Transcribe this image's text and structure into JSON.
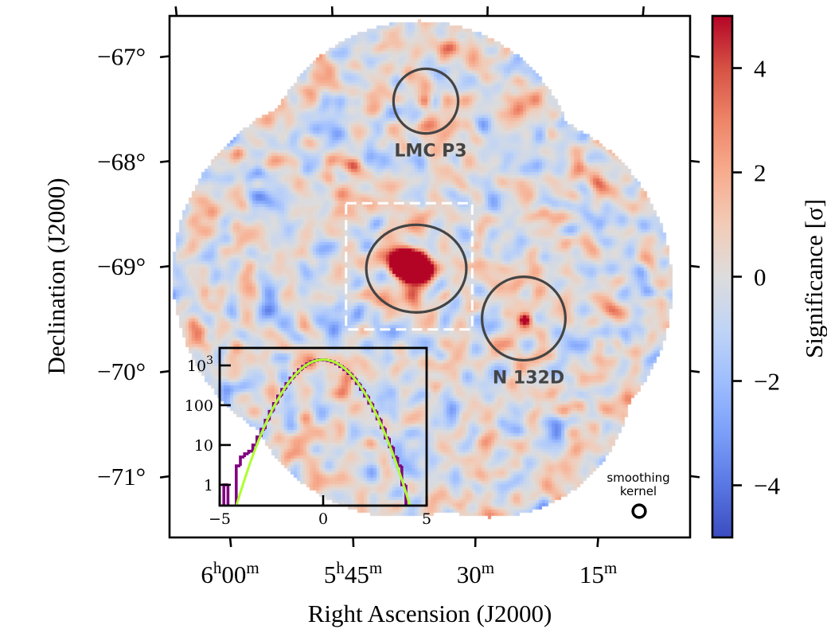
{
  "figure": {
    "background": "#ffffff",
    "colormap": {
      "name": "coolwarm",
      "stops": [
        "#3b4cc0",
        "#5977e3",
        "#7b9ff9",
        "#9ebeff",
        "#c0d4f5",
        "#dddcdc",
        "#f2cbb7",
        "#f7ac8e",
        "#ee8468",
        "#d65244",
        "#b40426"
      ]
    }
  },
  "chart_data": [
    {
      "id": "significance-map",
      "type": "heatmap",
      "title": "",
      "xlabel": "Right Ascension (J2000)",
      "ylabel": "Declination (J2000)",
      "xaxis": {
        "unit": "RA minutes of time",
        "range": [
          "6h07m",
          "5h04m"
        ],
        "ticks": [
          {
            "ra_min": 360,
            "label": [
              {
                "t": "6"
              },
              {
                "t": "h",
                "sup": true
              },
              {
                "t": "00"
              },
              {
                "t": "m",
                "sup": true
              }
            ]
          },
          {
            "ra_min": 345,
            "label": [
              {
                "t": "5"
              },
              {
                "t": "h",
                "sup": true
              },
              {
                "t": "45"
              },
              {
                "t": "m",
                "sup": true
              }
            ]
          },
          {
            "ra_min": 330,
            "label": [
              {
                "t": "30"
              },
              {
                "t": "m",
                "sup": true
              }
            ]
          },
          {
            "ra_min": 315,
            "label": [
              {
                "t": "15"
              },
              {
                "t": "m",
                "sup": true
              }
            ]
          }
        ]
      },
      "yaxis": {
        "unit": "deg",
        "range": [
          -71.6,
          -66.6
        ],
        "ticks": [
          {
            "dec": -67,
            "label": "−67°"
          },
          {
            "dec": -68,
            "label": "−68°"
          },
          {
            "dec": -69,
            "label": "−69°"
          },
          {
            "dec": -70,
            "label": "−70°"
          },
          {
            "dec": -71,
            "label": "−71°"
          }
        ]
      },
      "colorbar": {
        "label": "Significance [σ]",
        "vmin": -5,
        "vmax": 5,
        "ticks": [
          {
            "value": 4,
            "label": "4"
          },
          {
            "value": 2,
            "label": "2"
          },
          {
            "value": 0,
            "label": "0"
          },
          {
            "value": -2,
            "label": "−2"
          },
          {
            "value": -4,
            "label": "−4"
          }
        ]
      },
      "sources": [
        {
          "ra_min": 337.64,
          "dec": -69.144,
          "peak_sigma": 30,
          "sigma_major_deg": 0.11,
          "sigma_minor_deg": 0.077,
          "pa_deg": 20
        },
        {
          "ra_min": 337.64,
          "dec": -69.144,
          "peak_sigma": 1.3,
          "sigma_major_deg": 0.25,
          "sigma_minor_deg": 0.25,
          "pa_deg": 0
        },
        {
          "ra_min": 325.06,
          "dec": -69.644,
          "peak_sigma": 5.5,
          "sigma_major_deg": 0.045,
          "sigma_minor_deg": 0.045,
          "pa_deg": 0
        },
        {
          "ra_min": 325.06,
          "dec": -69.644,
          "peak_sigma": 1.2,
          "sigma_major_deg": 0.18,
          "sigma_minor_deg": 0.18,
          "pa_deg": 0
        },
        {
          "ra_min": 335.98,
          "dec": -67.565,
          "peak_sigma": 2.6,
          "sigma_major_deg": 0.045,
          "sigma_minor_deg": 0.045,
          "pa_deg": 0
        }
      ],
      "regions": [
        {
          "id": "lmc-p3",
          "shape": "circle",
          "ra_min": 335.98,
          "dec": -67.565,
          "radius_deg": 0.31,
          "label": "LMC P3",
          "color": "#444444"
        },
        {
          "id": "central-region",
          "shape": "ellipse",
          "ra_min": 337.04,
          "dec": -69.17,
          "rx_deg": 0.48,
          "ry_deg": 0.42,
          "label": "",
          "color": "#444444"
        },
        {
          "id": "n132d",
          "shape": "circle",
          "ra_min": 325.24,
          "dec": -69.63,
          "radius_deg": 0.4,
          "label": "N 132D",
          "color": "#444444"
        }
      ],
      "zoom_box": {
        "ra_min": 337.81,
        "dec": -69.148,
        "width_deg": 1.21,
        "height_deg": 1.21,
        "color": "#ffffff",
        "style": "dashed"
      },
      "smoothing_kernel": {
        "label_lines": [
          "smoothing",
          "kernel"
        ],
        "radius_deg": 0.06,
        "color": "#000000"
      }
    },
    {
      "id": "significance-histogram-inset",
      "type": "bar",
      "subtype": "histogram-step",
      "title": "",
      "xlabel": "",
      "ylabel": "",
      "xlim": [
        -5,
        5
      ],
      "ylim": [
        0.3,
        2750
      ],
      "yscale": "log",
      "xticks": [
        {
          "value": -5,
          "label": "−5"
        },
        {
          "value": 0,
          "label": "0"
        },
        {
          "value": 5,
          "label": "5"
        }
      ],
      "yticks": [
        {
          "value": 1,
          "label": "1"
        },
        {
          "value": 10,
          "label": "10"
        },
        {
          "value": 100,
          "label": "100"
        },
        {
          "value": 1000,
          "label": "10",
          "sup": "3"
        }
      ],
      "bin_width": 0.2,
      "x": [
        -4.9,
        -4.7,
        -4.5,
        -4.3,
        -4.1,
        -3.9,
        -3.7,
        -3.5,
        -3.3,
        -3.1,
        -2.9,
        -2.7,
        -2.5,
        -2.3,
        -2.1,
        -1.9,
        -1.7,
        -1.5,
        -1.3,
        -1.1,
        -0.9,
        -0.7,
        -0.5,
        -0.3,
        -0.1,
        0.1,
        0.3,
        0.5,
        0.7,
        0.9,
        1.1,
        1.3,
        1.5,
        1.7,
        1.9,
        2.1,
        2.3,
        2.5,
        2.7,
        2.9,
        3.1,
        3.3,
        3.5,
        3.7,
        3.9,
        4.1,
        4.3,
        4.5,
        4.7,
        4.9
      ],
      "values": [
        0,
        1,
        0,
        0,
        3,
        5,
        6,
        7,
        10,
        16,
        25,
        42,
        70,
        110,
        170,
        250,
        350,
        480,
        620,
        780,
        945,
        1100,
        1240,
        1340,
        1390,
        1380,
        1330,
        1230,
        1100,
        940,
        780,
        625,
        480,
        350,
        250,
        170,
        112,
        72,
        45,
        27,
        15,
        9,
        5,
        3,
        1,
        0,
        0,
        0,
        0,
        0
      ],
      "fit": {
        "type": "gaussian",
        "amplitude": 1400,
        "mean": 0.0,
        "sigma": 1.02
      },
      "colors": {
        "histogram": "#800080",
        "fit": "#adff2f"
      }
    }
  ]
}
